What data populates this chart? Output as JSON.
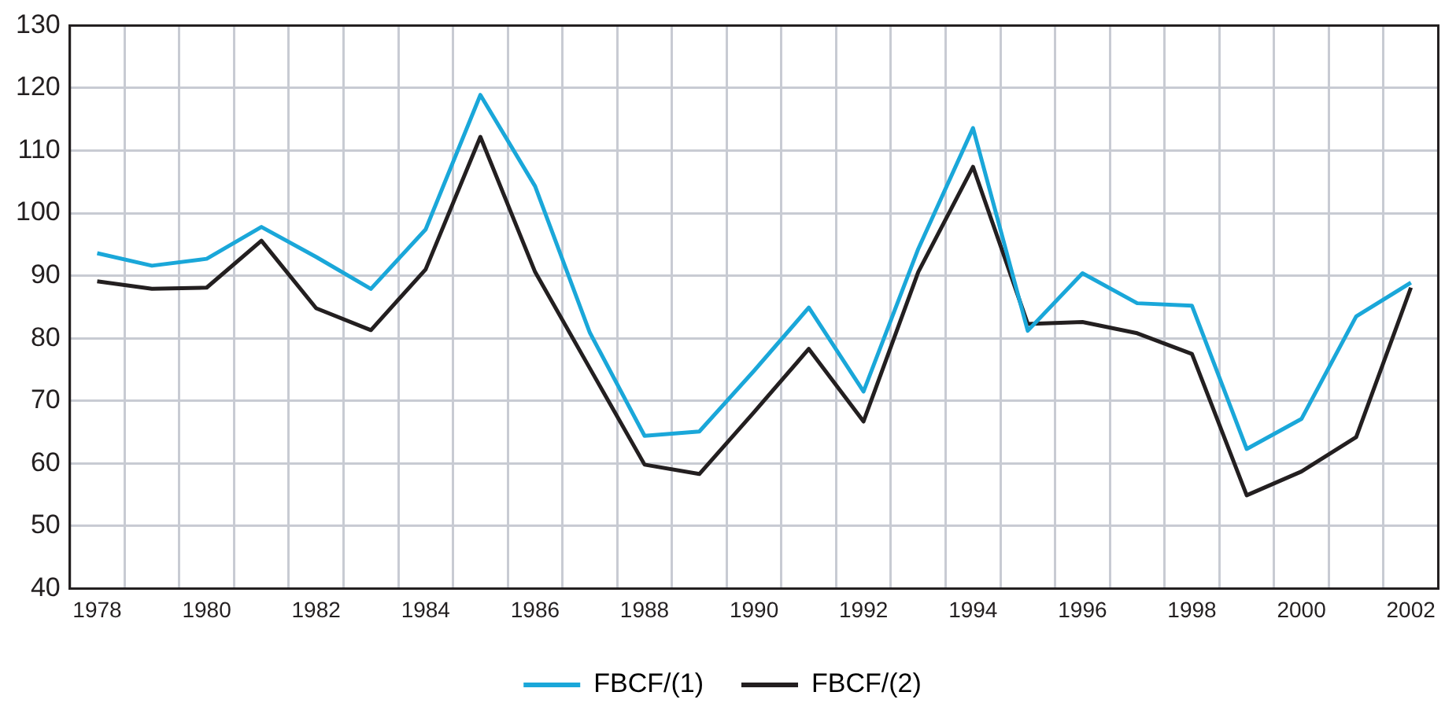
{
  "chart_data": {
    "type": "line",
    "categories": [
      "1978",
      null,
      "1980",
      null,
      "1982",
      null,
      "1984",
      null,
      "1986",
      null,
      "1988",
      null,
      "1990",
      null,
      "1992",
      null,
      "1994",
      null,
      "1996",
      null,
      "1998",
      null,
      "2000",
      null,
      "2002"
    ],
    "series": [
      {
        "name": "FBCF/(1)",
        "color": "#1aa7d9",
        "values": [
          93.6,
          91.6,
          92.7,
          97.8,
          93.0,
          87.9,
          97.4,
          118.9,
          104.3,
          80.9,
          64.4,
          65.1,
          74.8,
          84.9,
          71.5,
          94.3,
          113.6,
          81.2,
          90.4,
          85.6,
          85.2,
          62.3,
          67.1,
          83.5,
          88.9
        ]
      },
      {
        "name": "FBCF/(2)",
        "color": "#231f20",
        "values": [
          89.1,
          87.9,
          88.1,
          95.6,
          84.8,
          81.3,
          91.0,
          112.2,
          90.6,
          75.2,
          59.8,
          58.3,
          68.2,
          78.3,
          66.7,
          90.6,
          107.4,
          82.3,
          82.6,
          80.8,
          77.5,
          54.9,
          58.7,
          64.2,
          88.1
        ]
      }
    ],
    "ylim": [
      40,
      130
    ],
    "yticks": [
      40,
      50,
      60,
      70,
      80,
      90,
      100,
      110,
      120,
      130
    ],
    "grid": true,
    "legend": "bottom",
    "marker": "none",
    "line_style": "solid"
  }
}
